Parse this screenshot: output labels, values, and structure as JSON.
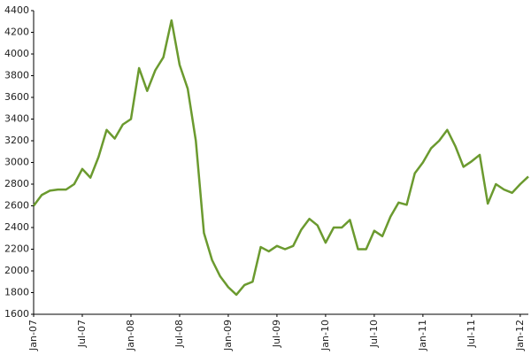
{
  "chart_data": {
    "type": "line",
    "x": [
      "2007-01",
      "2007-02",
      "2007-03",
      "2007-04",
      "2007-05",
      "2007-06",
      "2007-07",
      "2007-08",
      "2007-09",
      "2007-10",
      "2007-11",
      "2007-12",
      "2008-01",
      "2008-02",
      "2008-03",
      "2008-04",
      "2008-05",
      "2008-06",
      "2008-07",
      "2008-08",
      "2008-09",
      "2008-10",
      "2008-11",
      "2008-12",
      "2009-01",
      "2009-02",
      "2009-03",
      "2009-04",
      "2009-05",
      "2009-06",
      "2009-07",
      "2009-08",
      "2009-09",
      "2009-10",
      "2009-11",
      "2009-12",
      "2010-01",
      "2010-02",
      "2010-03",
      "2010-04",
      "2010-05",
      "2010-06",
      "2010-07",
      "2010-08",
      "2010-09",
      "2010-10",
      "2010-11",
      "2010-12",
      "2011-01",
      "2011-02",
      "2011-03",
      "2011-04",
      "2011-05",
      "2011-06",
      "2011-07",
      "2011-08",
      "2011-09",
      "2011-10",
      "2011-11",
      "2011-12",
      "2012-01",
      "2012-02"
    ],
    "series": [
      {
        "color": "#6b9a2f",
        "values": [
          2600,
          2700,
          2740,
          2750,
          2750,
          2800,
          2940,
          2860,
          3050,
          3300,
          3220,
          3350,
          3400,
          3870,
          3660,
          3850,
          3970,
          4310,
          3900,
          3680,
          3200,
          2350,
          2100,
          1950,
          1850,
          1780,
          1870,
          1900,
          2220,
          2180,
          2230,
          2200,
          2230,
          2380,
          2480,
          2420,
          2260,
          2400,
          2400,
          2470,
          2200,
          2200,
          2370,
          2320,
          2500,
          2630,
          2610,
          2900,
          3000,
          3130,
          3200,
          3300,
          3150,
          2960,
          3010,
          3070,
          2620,
          2800,
          2750,
          2720,
          2800,
          2870
        ]
      }
    ],
    "xlim": [
      "2007-01",
      "2012-02"
    ],
    "xticks": [
      {
        "value": "2007-01",
        "label": "Jan-07"
      },
      {
        "value": "2007-07",
        "label": "Jul-07"
      },
      {
        "value": "2008-01",
        "label": "Jan-08"
      },
      {
        "value": "2008-07",
        "label": "Jul-08"
      },
      {
        "value": "2009-01",
        "label": "Jan-09"
      },
      {
        "value": "2009-07",
        "label": "Jul-09"
      },
      {
        "value": "2010-01",
        "label": "Jan-10"
      },
      {
        "value": "2010-07",
        "label": "Jul-10"
      },
      {
        "value": "2011-01",
        "label": "Jan-11"
      },
      {
        "value": "2011-07",
        "label": "Jul-11"
      },
      {
        "value": "2012-01",
        "label": "Jan-12"
      }
    ],
    "ylim": [
      1600,
      4400
    ],
    "yticks": [
      1600,
      1800,
      2000,
      2200,
      2400,
      2600,
      2800,
      3000,
      3200,
      3400,
      3600,
      3800,
      4000,
      4200,
      4400
    ],
    "grid": false
  }
}
